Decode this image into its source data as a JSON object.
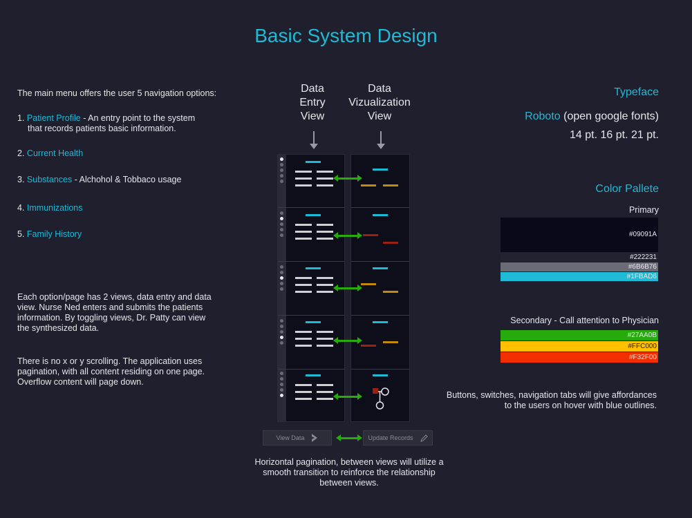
{
  "title": "Basic System Design",
  "intro": "The main menu offers the user 5 navigation options:",
  "nav": [
    {
      "num": "1.",
      "label": "Patient Profile",
      "desc": " - An entry point to the system",
      "desc2": "that records patients basic information."
    },
    {
      "num": "2.",
      "label": "Current Health",
      "desc": "",
      "desc2": ""
    },
    {
      "num": "3.",
      "label": "Substances",
      "desc": " - Alchohol & Tobbaco usage",
      "desc2": ""
    },
    {
      "num": "4.",
      "label": "Immunizations",
      "desc": "",
      "desc2": ""
    },
    {
      "num": "5.",
      "label": "Family History",
      "desc": "",
      "desc2": ""
    }
  ],
  "para1": "Each option/page has 2 views, data entry and data view. Nurse Ned enters and submits the patients information. By toggling views, Dr. Patty can view the synthesized data.",
  "para2": "There is no x or y scrolling. The application uses pagination, with all content residing on one page. Overflow content will page down.",
  "columns": {
    "entry": [
      "Data",
      "Entry",
      "View"
    ],
    "viz": [
      "Data",
      "Vizualization",
      "View"
    ]
  },
  "buttons": {
    "view_data": "View Data",
    "update_records": "Update Records"
  },
  "caption": "Horizontal pagination, between views will utilize a smooth transition to reinforce the relationship between views.",
  "typeface": {
    "heading": "Typeface",
    "name": "Roboto",
    "note": " (open google fonts)",
    "sizes": "14 pt. 16 pt. 21 pt."
  },
  "palette": {
    "heading": "Color Pallete",
    "primary_label": "Primary",
    "primary": [
      {
        "hex": "#09091A",
        "color": "#09091a"
      },
      {
        "hex": "#222231",
        "color": "#222231"
      },
      {
        "hex": "#6B6B76",
        "color": "#6b6b76"
      },
      {
        "hex": "#1FBAD6",
        "color": "#1fbad6"
      }
    ],
    "secondary_label": "Secondary - Call attention to Physician",
    "secondary": [
      {
        "hex": "#27AA0B",
        "color": "#27aa0b"
      },
      {
        "hex": "#FFC000",
        "color": "#ffc000"
      },
      {
        "hex": "#F32F00",
        "color": "#f32f00"
      }
    ]
  },
  "affordance": "Buttons, switches, navigation tabs will give affordances to the users on hover with blue outlines.",
  "icons": {
    "arrow": "chevron-right-icon",
    "pencil": "pencil-icon",
    "tree": "family-tree-icon"
  }
}
